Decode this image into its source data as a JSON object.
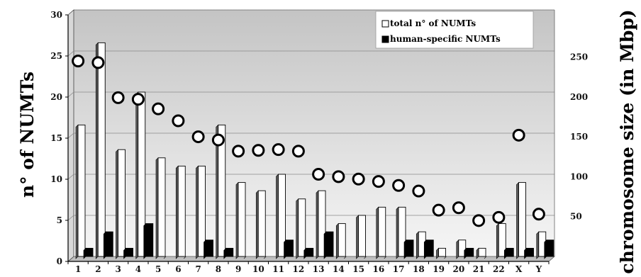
{
  "chart_data": {
    "type": "bar",
    "categories": [
      "1",
      "2",
      "3",
      "4",
      "5",
      "6",
      "7",
      "8",
      "9",
      "10",
      "11",
      "12",
      "13",
      "14",
      "15",
      "16",
      "17",
      "18",
      "19",
      "20",
      "21",
      "22",
      "X",
      "Y"
    ],
    "series": [
      {
        "name": "total n° of NUMTs",
        "type": "bar",
        "axis": "left",
        "fill": "#ffffff",
        "values": [
          16,
          26,
          13,
          20,
          12,
          11,
          11,
          16,
          9,
          8,
          10,
          7,
          8,
          4,
          5,
          6,
          6,
          3,
          1,
          2,
          1,
          4,
          9,
          3
        ]
      },
      {
        "name": "human-specific NUMTs",
        "type": "bar",
        "axis": "left",
        "fill": "#000000",
        "values": [
          1,
          3,
          1,
          4,
          0,
          0,
          2,
          1,
          0,
          0,
          2,
          1,
          3,
          0,
          0,
          0,
          2,
          2,
          0,
          1,
          0,
          1,
          1,
          2
        ]
      },
      {
        "type": "scatter",
        "axis": "right",
        "marker": "open-circle",
        "values": [
          245,
          243,
          199,
          197,
          185,
          170,
          150,
          146,
          132,
          133,
          134,
          132,
          103,
          100,
          97,
          94,
          89,
          82,
          58,
          61,
          45,
          49,
          152,
          53
        ]
      }
    ],
    "ylabel": "n° of NUMTs",
    "y2label": "chromosome size (in Mbp)",
    "ylim": [
      0,
      30
    ],
    "yticks": [
      "0",
      "5",
      "10",
      "15",
      "20",
      "25",
      "30"
    ],
    "y2lim": [
      0,
      309
    ],
    "y2ticks": [
      {
        "value": 50,
        "label": "50"
      },
      {
        "value": 100,
        "label": "100"
      },
      {
        "value": 150,
        "label": "150"
      },
      {
        "value": 200,
        "label": "200"
      },
      {
        "value": 250,
        "label": "250"
      }
    ],
    "grid": true,
    "legend_position": "top-right",
    "legend": [
      {
        "label": "total n° of NUMTs",
        "swatch": "#ffffff"
      },
      {
        "label": "human-specific NUMTs",
        "swatch": "#000000"
      }
    ]
  }
}
